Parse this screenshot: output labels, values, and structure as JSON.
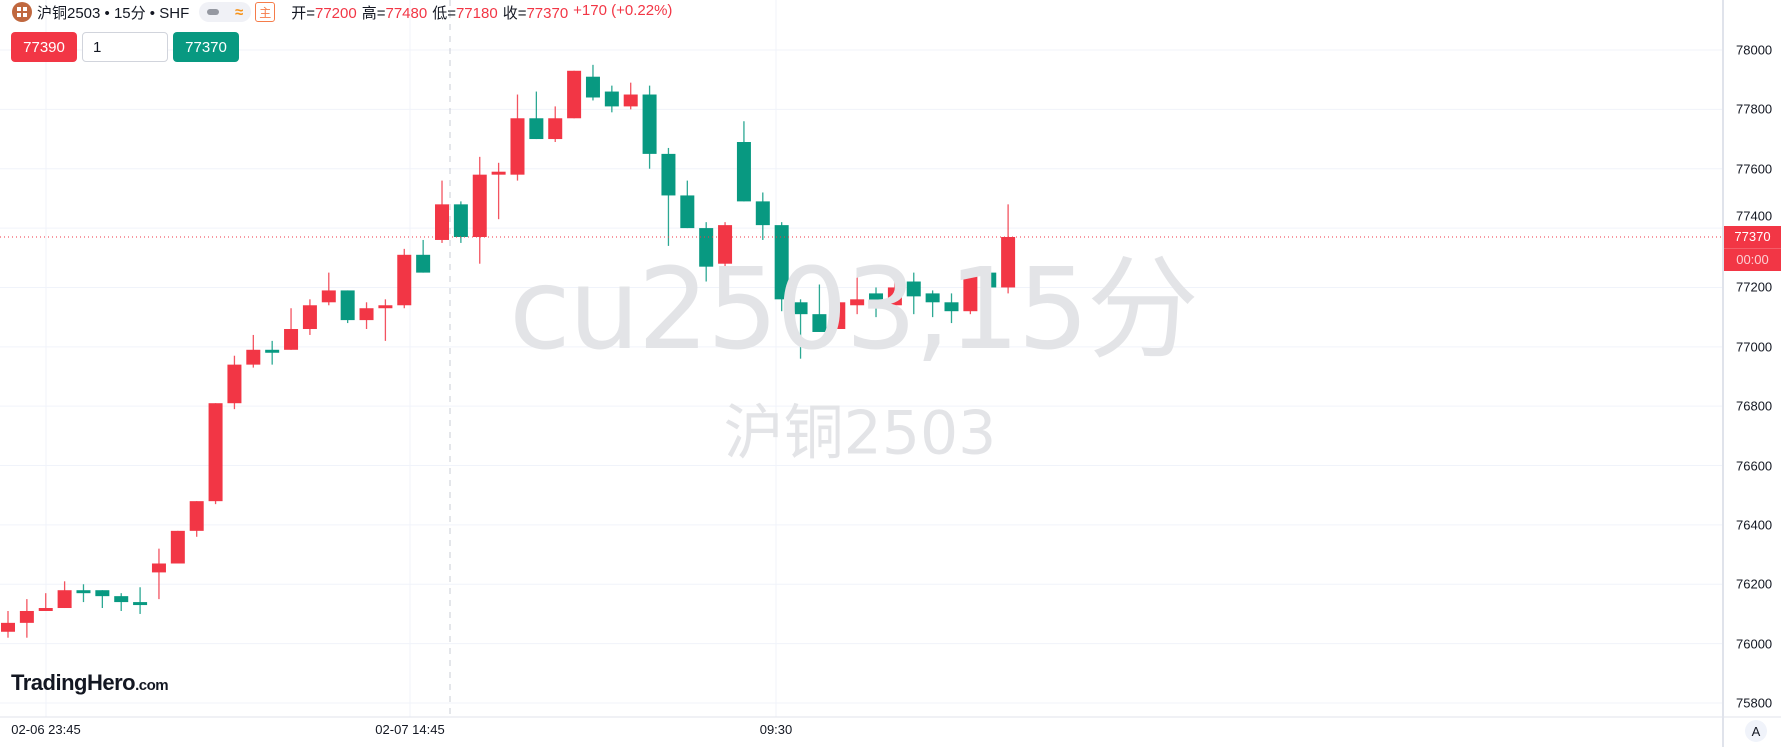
{
  "header": {
    "symbol_title": "沪铜2503 • 15分 • SHF",
    "main_label": "主",
    "ohlc": [
      {
        "label": "开=",
        "value": "77200"
      },
      {
        "label": "高=",
        "value": "77480"
      },
      {
        "label": "低=",
        "value": "77180"
      },
      {
        "label": "收=",
        "value": "77370"
      }
    ],
    "change": "+170 (+0.22%)"
  },
  "order_panel": {
    "sell_price": "77390",
    "quantity": "1",
    "buy_price": "77370"
  },
  "watermark": {
    "line1": "cu2503,15分",
    "line2": "沪铜2503"
  },
  "price_tag": {
    "price": "77370",
    "countdown": "00:00"
  },
  "auto_scale_label": "A",
  "logo": {
    "name": "TradingHero",
    "suffix": ".com"
  },
  "colors": {
    "up": "#F23645",
    "down": "#089981",
    "grid": "#F0F3FA"
  },
  "chart_data": {
    "type": "candlestick",
    "ylim": [
      75800,
      78000
    ],
    "y_ticks": [
      "78000",
      "77800",
      "77600",
      "77400",
      "77200",
      "77000",
      "76800",
      "76600",
      "76400",
      "76200",
      "76000",
      "75800"
    ],
    "x_ticks": [
      "02-06 23:45",
      "02-07 14:45",
      "09:30"
    ],
    "grid": true,
    "last_price": 77370,
    "candles": [
      {
        "o": 76040,
        "h": 76110,
        "l": 76020,
        "c": 76070
      },
      {
        "o": 76070,
        "h": 76150,
        "l": 76020,
        "c": 76110
      },
      {
        "o": 76110,
        "h": 76170,
        "l": 76110,
        "c": 76120
      },
      {
        "o": 76120,
        "h": 76210,
        "l": 76120,
        "c": 76180
      },
      {
        "o": 76180,
        "h": 76200,
        "l": 76140,
        "c": 76170
      },
      {
        "o": 76180,
        "h": 76180,
        "l": 76120,
        "c": 76160
      },
      {
        "o": 76160,
        "h": 76170,
        "l": 76110,
        "c": 76140
      },
      {
        "o": 76140,
        "h": 76190,
        "l": 76100,
        "c": 76130
      },
      {
        "o": 76240,
        "h": 76320,
        "l": 76150,
        "c": 76270
      },
      {
        "o": 76270,
        "h": 76380,
        "l": 76270,
        "c": 76380
      },
      {
        "o": 76380,
        "h": 76480,
        "l": 76360,
        "c": 76480
      },
      {
        "o": 76480,
        "h": 76810,
        "l": 76470,
        "c": 76810
      },
      {
        "o": 76810,
        "h": 76970,
        "l": 76790,
        "c": 76940
      },
      {
        "o": 76940,
        "h": 77040,
        "l": 76930,
        "c": 76990
      },
      {
        "o": 76990,
        "h": 77020,
        "l": 76940,
        "c": 76980
      },
      {
        "o": 76990,
        "h": 77130,
        "l": 76990,
        "c": 77060
      },
      {
        "o": 77060,
        "h": 77160,
        "l": 77040,
        "c": 77140
      },
      {
        "o": 77150,
        "h": 77250,
        "l": 77140,
        "c": 77190
      },
      {
        "o": 77190,
        "h": 77190,
        "l": 77080,
        "c": 77090
      },
      {
        "o": 77090,
        "h": 77150,
        "l": 77060,
        "c": 77130
      },
      {
        "o": 77130,
        "h": 77160,
        "l": 77020,
        "c": 77140
      },
      {
        "o": 77140,
        "h": 77330,
        "l": 77130,
        "c": 77310
      },
      {
        "o": 77310,
        "h": 77360,
        "l": 77250,
        "c": 77250
      },
      {
        "o": 77360,
        "h": 77560,
        "l": 77350,
        "c": 77480
      },
      {
        "o": 77480,
        "h": 77490,
        "l": 77350,
        "c": 77370
      },
      {
        "o": 77370,
        "h": 77640,
        "l": 77280,
        "c": 77580
      },
      {
        "o": 77580,
        "h": 77620,
        "l": 77430,
        "c": 77590
      },
      {
        "o": 77580,
        "h": 77850,
        "l": 77560,
        "c": 77770
      },
      {
        "o": 77770,
        "h": 77860,
        "l": 77700,
        "c": 77700
      },
      {
        "o": 77700,
        "h": 77810,
        "l": 77690,
        "c": 77770
      },
      {
        "o": 77770,
        "h": 77930,
        "l": 77770,
        "c": 77930
      },
      {
        "o": 77910,
        "h": 77950,
        "l": 77830,
        "c": 77840
      },
      {
        "o": 77860,
        "h": 77880,
        "l": 77790,
        "c": 77810
      },
      {
        "o": 77810,
        "h": 77890,
        "l": 77800,
        "c": 77850
      },
      {
        "o": 77850,
        "h": 77880,
        "l": 77600,
        "c": 77650
      },
      {
        "o": 77650,
        "h": 77670,
        "l": 77340,
        "c": 77510
      },
      {
        "o": 77510,
        "h": 77560,
        "l": 77400,
        "c": 77400
      },
      {
        "o": 77400,
        "h": 77420,
        "l": 77220,
        "c": 77270
      },
      {
        "o": 77280,
        "h": 77420,
        "l": 77260,
        "c": 77410
      },
      {
        "o": 77690,
        "h": 77760,
        "l": 77490,
        "c": 77490
      },
      {
        "o": 77490,
        "h": 77520,
        "l": 77360,
        "c": 77410
      },
      {
        "o": 77410,
        "h": 77420,
        "l": 77120,
        "c": 77160
      },
      {
        "o": 77150,
        "h": 77160,
        "l": 76960,
        "c": 77110
      },
      {
        "o": 77110,
        "h": 77210,
        "l": 77050,
        "c": 77050
      },
      {
        "o": 77060,
        "h": 77160,
        "l": 77060,
        "c": 77150
      },
      {
        "o": 77140,
        "h": 77250,
        "l": 77110,
        "c": 77160
      },
      {
        "o": 77180,
        "h": 77200,
        "l": 77100,
        "c": 77140
      },
      {
        "o": 77140,
        "h": 77240,
        "l": 77110,
        "c": 77200
      },
      {
        "o": 77220,
        "h": 77250,
        "l": 77110,
        "c": 77170
      },
      {
        "o": 77180,
        "h": 77190,
        "l": 77100,
        "c": 77150
      },
      {
        "o": 77150,
        "h": 77180,
        "l": 77080,
        "c": 77120
      },
      {
        "o": 77120,
        "h": 77250,
        "l": 77110,
        "c": 77250
      },
      {
        "o": 77250,
        "h": 77250,
        "l": 77140,
        "c": 77200
      },
      {
        "o": 77200,
        "h": 77480,
        "l": 77180,
        "c": 77370
      }
    ]
  }
}
